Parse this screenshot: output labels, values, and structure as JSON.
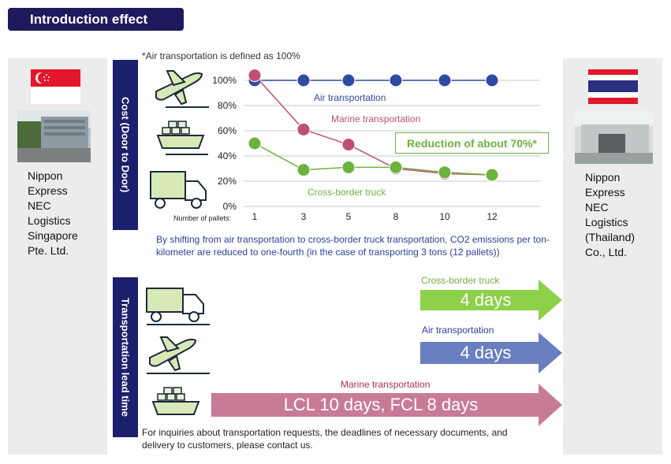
{
  "header": {
    "title": "Introduction effect"
  },
  "left_company": {
    "name": "Nippon\nExpress\nNEC\nLogistics\nSingapore\nPte. Ltd."
  },
  "right_company": {
    "name": "Nippon\nExpress\nNEC\nLogistics\n(Thailand)\nCo., Ltd."
  },
  "cost_section": {
    "band_label": "Cost (Door to Door)",
    "note": "*Air transportation is defined as 100%",
    "callout": "Reduction of about 70%*",
    "summary": "By shifting from air transportation to cross-border truck transportation, CO2 emissions per ton-kilometer are reduced to one-fourth (in the case of transporting 3 tons (12 pallets))"
  },
  "chart_data": {
    "type": "line",
    "title": "",
    "xlabel": "Number of pallets:",
    "ylabel": "",
    "x_ticks": [
      "1",
      "3",
      "5",
      "8",
      "10",
      "12"
    ],
    "y_ticks": [
      "100%",
      "80%",
      "60%",
      "40%",
      "20%",
      "0%"
    ],
    "ylim": [
      0,
      100
    ],
    "grid": true,
    "series": [
      {
        "name": "Air transportation",
        "color": "#2f4aa3",
        "x": [
          1,
          3,
          5,
          8,
          10,
          12
        ],
        "values": [
          100,
          100,
          100,
          100,
          100,
          100
        ]
      },
      {
        "name": "Marine transportation",
        "color": "#c0506e",
        "x": [
          1,
          3,
          5,
          8,
          10,
          12
        ],
        "values": [
          104,
          61,
          49,
          30,
          26,
          25
        ]
      },
      {
        "name": "Cross-border truck",
        "color": "#6cb33e",
        "x": [
          1,
          3,
          5,
          8,
          10,
          12
        ],
        "values": [
          50,
          29,
          31,
          31,
          27,
          25
        ]
      }
    ]
  },
  "lead_time": {
    "band_label": "Transportation lead time",
    "items": [
      {
        "label": "Cross-border truck",
        "days": "4 days",
        "color": "#8dd04a",
        "label_color": "#7aab3a"
      },
      {
        "label": "Air transportation",
        "days": "4 days",
        "color": "#6a7fc0",
        "label_color": "#2d3f9a"
      },
      {
        "label": "Marine transportation",
        "days": "LCL 10 days, FCL 8 days",
        "color": "#c87b96",
        "label_color": "#b0304f"
      }
    ],
    "footer": "For inquiries about transportation requests, the deadlines of necessary documents, and delivery to customers, please contact us."
  }
}
